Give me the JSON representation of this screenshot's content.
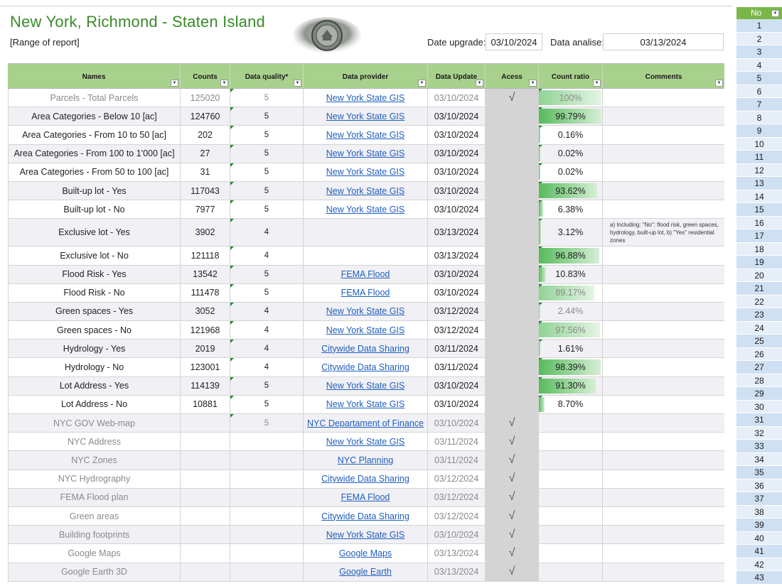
{
  "header": {
    "title": "New York, Richmond - Staten Island",
    "subtitle": "[Range of report]",
    "date_upgrade_label": "Date upgrade:",
    "date_upgrade_value": "03/10/2024",
    "data_analise_label": "Data analise:",
    "data_analise_value": "03/13/2024"
  },
  "columns": [
    {
      "key": "names",
      "label": "Names"
    },
    {
      "key": "counts",
      "label": "Counts"
    },
    {
      "key": "quality",
      "label": "Data quality*"
    },
    {
      "key": "provider",
      "label": "Data provider"
    },
    {
      "key": "update",
      "label": "Data Update"
    },
    {
      "key": "acess",
      "label": "Acess"
    },
    {
      "key": "ratio",
      "label": "Count ratio"
    },
    {
      "key": "comments",
      "label": "Comments"
    }
  ],
  "rows": [
    {
      "name": "Parcels - Total Parcels",
      "count": "125020",
      "quality": "5",
      "provider": "New York State GIS",
      "update": "03/10/2024",
      "acess": "√",
      "ratio": "100%",
      "ratio_value": 1.0,
      "comment": "",
      "dim": true
    },
    {
      "name": "Area Categories - Below 10 [ac]",
      "count": "124760",
      "quality": "5",
      "provider": "New York State GIS",
      "update": "03/10/2024",
      "acess": "",
      "ratio": "99.79%",
      "ratio_value": 0.9979,
      "comment": "",
      "dim": false
    },
    {
      "name": "Area Categories - From 10 to 50 [ac]",
      "count": "202",
      "quality": "5",
      "provider": "New York State GIS",
      "update": "03/10/2024",
      "acess": "",
      "ratio": "0.16%",
      "ratio_value": 0.0016,
      "comment": "",
      "dim": false
    },
    {
      "name": "Area Categories - From 100 to 1'000 [ac]",
      "count": "27",
      "quality": "5",
      "provider": "New York State GIS",
      "update": "03/10/2024",
      "acess": "",
      "ratio": "0.02%",
      "ratio_value": 0.0002,
      "comment": "",
      "dim": false
    },
    {
      "name": "Area Categories - From 50 to 100 [ac]",
      "count": "31",
      "quality": "5",
      "provider": "New York State GIS",
      "update": "03/10/2024",
      "acess": "",
      "ratio": "0.02%",
      "ratio_value": 0.0002,
      "comment": "",
      "dim": false
    },
    {
      "name": "Built-up lot - Yes",
      "count": "117043",
      "quality": "5",
      "provider": "New York State GIS",
      "update": "03/10/2024",
      "acess": "",
      "ratio": "93.62%",
      "ratio_value": 0.9362,
      "comment": "",
      "dim": false
    },
    {
      "name": "Built-up lot - No",
      "count": "7977",
      "quality": "5",
      "provider": "New York State GIS",
      "update": "03/10/2024",
      "acess": "",
      "ratio": "6.38%",
      "ratio_value": 0.0638,
      "comment": "",
      "dim": false
    },
    {
      "name": "Exclusive lot - Yes",
      "count": "3902",
      "quality": "4",
      "provider": "",
      "update": "03/13/2024",
      "acess": "",
      "ratio": "3.12%",
      "ratio_value": 0.0312,
      "comment": "a) Including: \"No\": flood risk, green spaces, hydrology, built-up lot, b) \"Yes\" residential zones",
      "dim": false,
      "tall": true
    },
    {
      "name": "Exclusive lot - No",
      "count": "121118",
      "quality": "4",
      "provider": "",
      "update": "03/13/2024",
      "acess": "",
      "ratio": "96.88%",
      "ratio_value": 0.9688,
      "comment": "",
      "dim": false
    },
    {
      "name": "Flood Risk - Yes",
      "count": "13542",
      "quality": "5",
      "provider": "FEMA Flood",
      "update": "03/10/2024",
      "acess": "",
      "ratio": "10.83%",
      "ratio_value": 0.1083,
      "comment": "",
      "dim": false
    },
    {
      "name": "Flood Risk - No",
      "count": "111478",
      "quality": "5",
      "provider": "FEMA Flood",
      "update": "03/10/2024",
      "acess": "",
      "ratio": "89.17%",
      "ratio_value": 0.8917,
      "comment": "",
      "dim": false,
      "ratio_dim": true
    },
    {
      "name": "Green spaces - Yes",
      "count": "3052",
      "quality": "4",
      "provider": "New York State GIS",
      "update": "03/12/2024",
      "acess": "",
      "ratio": "2.44%",
      "ratio_value": 0.0244,
      "comment": "",
      "dim": false,
      "ratio_dim": true
    },
    {
      "name": "Green spaces - No",
      "count": "121968",
      "quality": "4",
      "provider": "New York State GIS",
      "update": "03/12/2024",
      "acess": "",
      "ratio": "97.56%",
      "ratio_value": 0.9756,
      "comment": "",
      "dim": false,
      "ratio_dim": true
    },
    {
      "name": "Hydrology - Yes",
      "count": "2019",
      "quality": "4",
      "provider": "Citywide Data Sharing",
      "update": "03/11/2024",
      "acess": "",
      "ratio": "1.61%",
      "ratio_value": 0.0161,
      "comment": "",
      "dim": false
    },
    {
      "name": "Hydrology - No",
      "count": "123001",
      "quality": "4",
      "provider": "Citywide Data Sharing",
      "update": "03/11/2024",
      "acess": "",
      "ratio": "98.39%",
      "ratio_value": 0.9839,
      "comment": "",
      "dim": false
    },
    {
      "name": "Lot Address - Yes",
      "count": "114139",
      "quality": "5",
      "provider": "New York State GIS",
      "update": "03/10/2024",
      "acess": "",
      "ratio": "91.30%",
      "ratio_value": 0.913,
      "comment": "",
      "dim": false
    },
    {
      "name": "Lot Address - No",
      "count": "10881",
      "quality": "5",
      "provider": "New York State GIS",
      "update": "03/10/2024",
      "acess": "",
      "ratio": "8.70%",
      "ratio_value": 0.087,
      "comment": "",
      "dim": false
    },
    {
      "name": "NYC GOV Web-map",
      "count": "",
      "quality": "5",
      "provider": "NYC Departament of Finance",
      "update": "03/10/2024",
      "acess": "√",
      "ratio": "",
      "ratio_value": 0,
      "comment": "",
      "dim": true
    },
    {
      "name": "NYC Address",
      "count": "",
      "quality": "",
      "provider": "New York State GIS",
      "update": "03/11/2024",
      "acess": "√",
      "ratio": "",
      "ratio_value": 0,
      "comment": "",
      "dim": true
    },
    {
      "name": "NYC Zones",
      "count": "",
      "quality": "",
      "provider": "NYC Planning",
      "update": "03/11/2024",
      "acess": "√",
      "ratio": "",
      "ratio_value": 0,
      "comment": "",
      "dim": true
    },
    {
      "name": "NYC Hydrography",
      "count": "",
      "quality": "",
      "provider": "Citywide Data Sharing",
      "update": "03/12/2024",
      "acess": "√",
      "ratio": "",
      "ratio_value": 0,
      "comment": "",
      "dim": true
    },
    {
      "name": "FEMA Flood plan",
      "count": "",
      "quality": "",
      "provider": "FEMA Flood",
      "update": "03/12/2024",
      "acess": "√",
      "ratio": "",
      "ratio_value": 0,
      "comment": "",
      "dim": true
    },
    {
      "name": "Green areas",
      "count": "",
      "quality": "",
      "provider": "Citywide Data Sharing",
      "update": "03/12/2024",
      "acess": "√",
      "ratio": "",
      "ratio_value": 0,
      "comment": "",
      "dim": true
    },
    {
      "name": "Building footprints",
      "count": "",
      "quality": "",
      "provider": "New York State GIS",
      "update": "03/10/2024",
      "acess": "√",
      "ratio": "",
      "ratio_value": 0,
      "comment": "",
      "dim": true
    },
    {
      "name": "Google Maps",
      "count": "",
      "quality": "",
      "provider": "Google Maps",
      "update": "03/13/2024",
      "acess": "√",
      "ratio": "",
      "ratio_value": 0,
      "comment": "",
      "dim": true
    },
    {
      "name": "Google Earth 3D",
      "count": "",
      "quality": "",
      "provider": "Google Earth",
      "update": "03/13/2024",
      "acess": "√",
      "ratio": "",
      "ratio_value": 0,
      "comment": "",
      "dim": true
    }
  ],
  "no_panel": {
    "header": "No",
    "numbers": [
      "1",
      "2",
      "3",
      "4",
      "5",
      "6",
      "7",
      "8",
      "9",
      "10",
      "11",
      "12",
      "13",
      "14",
      "15",
      "16",
      "17",
      "18",
      "19",
      "20",
      "21",
      "22",
      "23",
      "24",
      "25",
      "26",
      "27",
      "28",
      "29",
      "30",
      "31",
      "32",
      "33",
      "34",
      "35",
      "36",
      "37",
      "38",
      "39",
      "40",
      "41",
      "42",
      "43"
    ]
  },
  "colors": {
    "title": "#3a8a2a",
    "header_bg": "#a9d18e",
    "link": "#1f5fbf",
    "ratio_bar": "#57bb5c",
    "no_header": "#7ab648"
  },
  "icons": {
    "filter": "filter-dropdown-icon",
    "check": "check-mark-icon",
    "seal": "city-seal-icon"
  }
}
